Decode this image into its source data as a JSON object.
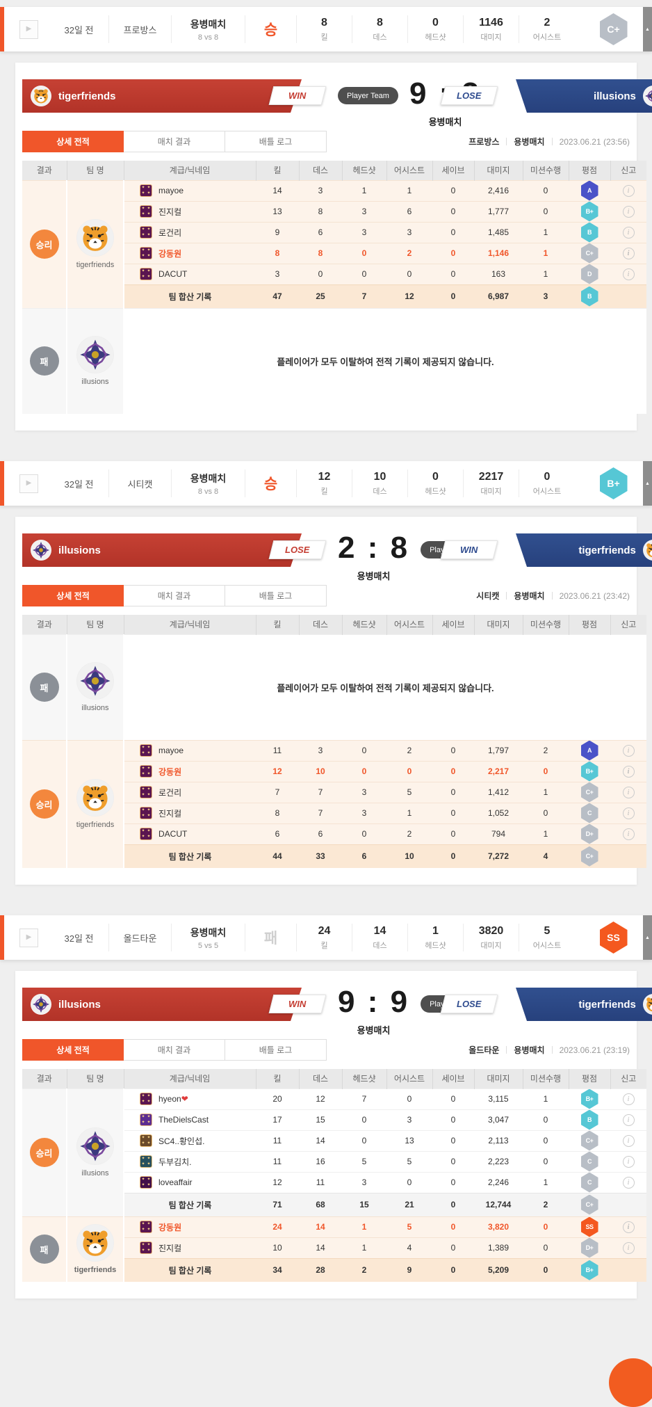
{
  "icons": {
    "play": "▶",
    "collapse": "▲",
    "report": "i",
    "rank_star": "✦"
  },
  "colors": {
    "accent": "#f0562a",
    "win_circle": "#f3873d",
    "lose_circle": "#8b9097",
    "red_team": "#bd3a31",
    "blue_team": "#2e4b8e",
    "highlight": "#f0562a"
  },
  "grade_colors": {
    "A": "#4a52c8",
    "B+": "#56c7d5",
    "B": "#56c7d5",
    "C+": "#b8bec6",
    "C": "#b8bec6",
    "D": "#b8bec6",
    "D+": "#b8bec6",
    "SS": "#f4581f"
  },
  "tabs": [
    {
      "label": "상세 전적",
      "active": true
    },
    {
      "label": "매치 결과",
      "active": false
    },
    {
      "label": "배틀 로그",
      "active": false
    }
  ],
  "table_headers": [
    "결과",
    "팀 명",
    "계급/닉네임",
    "킬",
    "데스",
    "헤드샷",
    "어시스트",
    "세이브",
    "대미지",
    "미션수행",
    "평점",
    "신고"
  ],
  "cards": [
    {
      "header": {
        "time": "32일 전",
        "map": "프로방스",
        "mode": "용병매치",
        "mode_sub": "8 vs 8",
        "result": "승",
        "result_type": "win",
        "stats": [
          {
            "value": "8",
            "label": "킬"
          },
          {
            "value": "8",
            "label": "데스"
          },
          {
            "value": "0",
            "label": "헤드샷"
          },
          {
            "value": "1146",
            "label": "대미지"
          },
          {
            "value": "2",
            "label": "어시스트"
          }
        ],
        "rank": "C+"
      },
      "banner": {
        "left": {
          "name": "tigerfriends",
          "tag": "WIN",
          "logo": "tiger"
        },
        "right": {
          "name": "illusions",
          "tag": "LOSE",
          "logo": "illusions"
        },
        "player_side": "left",
        "player_team_label": "Player Team",
        "score": "9 : 3",
        "mode_label": "용병매치"
      },
      "info": {
        "map": "프로방스",
        "mode": "용병매치",
        "date": "2023.06.21 (23:56)"
      },
      "table": {
        "sections": [
          {
            "result_label": "승리",
            "result_type": "win",
            "team": "tigerfriends",
            "team_logo": "tiger",
            "player_team": true,
            "rows": [
              {
                "name": "mayoe",
                "rank_color": "#5a1550",
                "cells": [
                  "14",
                  "3",
                  "1",
                  "1",
                  "0",
                  "2,416",
                  "0"
                ],
                "grade": "A"
              },
              {
                "name": "진지컬",
                "rank_color": "#5a1550",
                "cells": [
                  "13",
                  "8",
                  "3",
                  "6",
                  "0",
                  "1,777",
                  "0"
                ],
                "grade": "B+"
              },
              {
                "name": "로건리",
                "rank_color": "#5a1550",
                "cells": [
                  "9",
                  "6",
                  "3",
                  "3",
                  "0",
                  "1,485",
                  "1"
                ],
                "grade": "B"
              },
              {
                "name": "강동원",
                "rank_color": "#5a1550",
                "cells": [
                  "8",
                  "8",
                  "0",
                  "2",
                  "0",
                  "1,146",
                  "1"
                ],
                "grade": "C+",
                "highlight": true
              },
              {
                "name": "DACUT",
                "rank_color": "#5a1550",
                "cells": [
                  "3",
                  "0",
                  "0",
                  "0",
                  "0",
                  "163",
                  "1"
                ],
                "grade": "D"
              }
            ],
            "total": {
              "label": "팀 합산 기록",
              "cells": [
                "47",
                "25",
                "7",
                "12",
                "0",
                "6,987",
                "3"
              ],
              "grade": "B"
            }
          },
          {
            "result_label": "패",
            "result_type": "lose",
            "team": "illusions",
            "team_logo": "illusions",
            "player_team": false,
            "empty_message": "플레이어가 모두 이탈하여 전적 기록이 제공되지 않습니다."
          }
        ]
      }
    },
    {
      "header": {
        "time": "32일 전",
        "map": "시티캣",
        "mode": "용병매치",
        "mode_sub": "8 vs 8",
        "result": "승",
        "result_type": "win",
        "stats": [
          {
            "value": "12",
            "label": "킬"
          },
          {
            "value": "10",
            "label": "데스"
          },
          {
            "value": "0",
            "label": "헤드샷"
          },
          {
            "value": "2217",
            "label": "대미지"
          },
          {
            "value": "0",
            "label": "어시스트"
          }
        ],
        "rank": "B+"
      },
      "banner": {
        "left": {
          "name": "illusions",
          "tag": "LOSE",
          "logo": "illusions"
        },
        "right": {
          "name": "tigerfriends",
          "tag": "WIN",
          "logo": "tiger"
        },
        "player_side": "right",
        "player_team_label": "Player Team",
        "score": "2 : 8",
        "mode_label": "용병매치"
      },
      "info": {
        "map": "시티캣",
        "mode": "용병매치",
        "date": "2023.06.21 (23:42)"
      },
      "table": {
        "sections": [
          {
            "result_label": "패",
            "result_type": "lose",
            "team": "illusions",
            "team_logo": "illusions",
            "player_team": false,
            "empty_message": "플레이어가 모두 이탈하여 전적 기록이 제공되지 않습니다."
          },
          {
            "result_label": "승리",
            "result_type": "win",
            "team": "tigerfriends",
            "team_logo": "tiger",
            "player_team": true,
            "rows": [
              {
                "name": "mayoe",
                "rank_color": "#5a1550",
                "cells": [
                  "11",
                  "3",
                  "0",
                  "2",
                  "0",
                  "1,797",
                  "2"
                ],
                "grade": "A"
              },
              {
                "name": "강동원",
                "rank_color": "#5a1550",
                "cells": [
                  "12",
                  "10",
                  "0",
                  "0",
                  "0",
                  "2,217",
                  "0"
                ],
                "grade": "B+",
                "highlight": true
              },
              {
                "name": "로건리",
                "rank_color": "#5a1550",
                "cells": [
                  "7",
                  "7",
                  "3",
                  "5",
                  "0",
                  "1,412",
                  "1"
                ],
                "grade": "C+"
              },
              {
                "name": "진지컬",
                "rank_color": "#5a1550",
                "cells": [
                  "8",
                  "7",
                  "3",
                  "1",
                  "0",
                  "1,052",
                  "0"
                ],
                "grade": "C"
              },
              {
                "name": "DACUT",
                "rank_color": "#5a1550",
                "cells": [
                  "6",
                  "6",
                  "0",
                  "2",
                  "0",
                  "794",
                  "1"
                ],
                "grade": "D+"
              }
            ],
            "total": {
              "label": "팀 합산 기록",
              "cells": [
                "44",
                "33",
                "6",
                "10",
                "0",
                "7,272",
                "4"
              ],
              "grade": "C+"
            }
          }
        ]
      }
    },
    {
      "header": {
        "time": "32일 전",
        "map": "올드타운",
        "mode": "용병매치",
        "mode_sub": "5 vs 5",
        "result": "패",
        "result_type": "lose",
        "stats": [
          {
            "value": "24",
            "label": "킬"
          },
          {
            "value": "14",
            "label": "데스"
          },
          {
            "value": "1",
            "label": "헤드샷"
          },
          {
            "value": "3820",
            "label": "대미지"
          },
          {
            "value": "5",
            "label": "어시스트"
          }
        ],
        "rank": "SS"
      },
      "banner": {
        "left": {
          "name": "illusions",
          "tag": "WIN",
          "logo": "illusions"
        },
        "right": {
          "name": "tigerfriends",
          "tag": "LOSE",
          "logo": "tiger"
        },
        "player_side": "right",
        "player_team_label": "Player Team",
        "score": "9 : 9",
        "mode_label": "용병매치"
      },
      "info": {
        "map": "올드타운",
        "mode": "용병매치",
        "date": "2023.06.21 (23:19)"
      },
      "table": {
        "sections": [
          {
            "result_label": "승리",
            "result_type": "win",
            "team": "illusions",
            "team_logo": "illusions",
            "player_team": false,
            "rows": [
              {
                "name": "hyeon❤",
                "rank_color": "#5a1550",
                "cells": [
                  "20",
                  "12",
                  "7",
                  "0",
                  "0",
                  "3,115",
                  "1"
                ],
                "grade": "B+"
              },
              {
                "name": "TheDielsCast",
                "rank_color": "#5c2d91",
                "cells": [
                  "17",
                  "15",
                  "0",
                  "3",
                  "0",
                  "3,047",
                  "0"
                ],
                "grade": "B"
              },
              {
                "name": "SC4..황인섭.",
                "rank_color": "#6b4a2a",
                "cells": [
                  "11",
                  "14",
                  "0",
                  "13",
                  "0",
                  "2,113",
                  "0"
                ],
                "grade": "C+"
              },
              {
                "name": "두부김치.",
                "rank_color": "#27505e",
                "cells": [
                  "11",
                  "16",
                  "5",
                  "5",
                  "0",
                  "2,223",
                  "0"
                ],
                "grade": "C"
              },
              {
                "name": "loveaffair",
                "rank_color": "#43104a",
                "cells": [
                  "12",
                  "11",
                  "3",
                  "0",
                  "0",
                  "2,246",
                  "1"
                ],
                "grade": "C"
              }
            ],
            "total": {
              "label": "팀 합산 기록",
              "cells": [
                "71",
                "68",
                "15",
                "21",
                "0",
                "12,744",
                "2"
              ],
              "grade": "C+"
            }
          },
          {
            "result_label": "패",
            "result_type": "lose",
            "team": "tigerfriends",
            "team_logo": "tiger",
            "player_team": true,
            "rows": [
              {
                "name": "강동원",
                "rank_color": "#5a1550",
                "cells": [
                  "24",
                  "14",
                  "1",
                  "5",
                  "0",
                  "3,820",
                  "0"
                ],
                "grade": "SS",
                "highlight": true
              },
              {
                "name": "진지컬",
                "rank_color": "#5a1550",
                "cells": [
                  "10",
                  "14",
                  "1",
                  "4",
                  "0",
                  "1,389",
                  "0"
                ],
                "grade": "D+"
              }
            ],
            "total": {
              "label": "팀 합산 기록",
              "cells": [
                "34",
                "28",
                "2",
                "9",
                "0",
                "5,209",
                "0"
              ],
              "grade": "B+"
            }
          }
        ]
      }
    }
  ]
}
